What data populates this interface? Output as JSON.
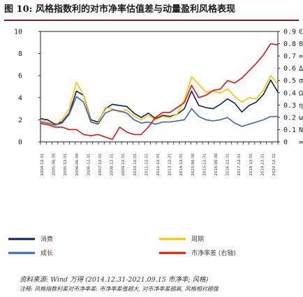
{
  "title": "图 10: 风格指数利的对市净率估值差与动量盈利风格表现",
  "source": "资料来源: Wind 万得 (2014.12.31-2021.09.15 市净率; 风格)",
  "note": "注释: 风格指数利差对市净率差: 市净率差值越大, 对市净率差越高, 风格相对越强",
  "colors": {
    "navy": "#0b1f5c",
    "blue": "#3b63b6",
    "gold": "#ffc000",
    "red": "#e01010"
  },
  "chart_data": {
    "type": "line",
    "x": [
      "2004-12-31",
      "2005-06-30",
      "2005-12-31",
      "2006-06-30",
      "2006-12-31",
      "2007-06-30",
      "2007-12-31",
      "2008-06-30",
      "2008-12-31",
      "2009-06-30",
      "2009-12-31",
      "2010-06-30",
      "2010-12-31",
      "2011-06-30",
      "2011-12-31",
      "2012-06-30",
      "2012-12-31",
      "2013-06-30",
      "2013-12-31",
      "2014-06-30",
      "2014-12-31",
      "2015-06-30",
      "2015-12-31",
      "2016-06-30",
      "2016-12-31",
      "2017-06-30",
      "2017-12-31",
      "2018-06-30",
      "2018-12-31",
      "2019-06-30",
      "2019-12-31",
      "2020-06-30",
      "2020-12-31",
      "2021-06-30"
    ],
    "xtick_labels": [
      "2004-12-31",
      "2005-06-30",
      "2005-12-31",
      "2006-06-30",
      "2006-12-31",
      "2007-12-31",
      "2008-12-31",
      "2009-12-31",
      "2010-12-31",
      "2011-12-31",
      "2012-12-31",
      "2013-12-31",
      "2014-12-31",
      "2015-06-30",
      "2015-12-31",
      "2016-06-30",
      "2016-12-31",
      "2017-12-31",
      "2018-12-31",
      "2019-12-31",
      "2020-12-31"
    ],
    "y_left": {
      "range": [
        0,
        10
      ],
      "ticks": [
        0,
        2,
        4,
        6,
        8,
        10
      ]
    },
    "y_right": {
      "range": [
        0,
        0.9
      ],
      "ticks": [
        0,
        0.1,
        0.2,
        0.3,
        0.4,
        0.5,
        0.6,
        0.7,
        0.8,
        0.9
      ]
    },
    "right_axis_glyphs": [
      "=",
      "N",
      "ω",
      "ƞ",
      "Ω",
      "σ",
      "∆",
      "∞",
      "Θ",
      "Ͼ"
    ],
    "series": [
      {
        "name": "消费",
        "axis": "left",
        "color": "#0b1f5c",
        "values": [
          2.1,
          2.0,
          1.6,
          1.8,
          2.6,
          4.6,
          4.2,
          2.0,
          1.8,
          3.0,
          3.4,
          3.3,
          3.2,
          2.6,
          2.2,
          2.6,
          2.1,
          2.4,
          2.3,
          2.5,
          3.0,
          4.6,
          3.3,
          3.1,
          3.0,
          3.4,
          3.9,
          3.5,
          2.7,
          3.3,
          3.6,
          4.3,
          5.6,
          4.5
        ]
      },
      {
        "name": "周期",
        "axis": "left",
        "color": "#ffc000",
        "values": [
          1.9,
          1.9,
          1.5,
          2.0,
          3.0,
          5.4,
          4.2,
          1.8,
          1.7,
          3.1,
          3.0,
          2.7,
          2.9,
          2.3,
          2.0,
          2.4,
          2.0,
          2.3,
          2.2,
          2.5,
          3.8,
          5.9,
          5.2,
          4.5,
          4.6,
          4.4,
          4.8,
          4.1,
          3.6,
          4.0,
          3.9,
          4.7,
          6.0,
          5.2
        ]
      },
      {
        "name": "成长",
        "axis": "left",
        "color": "#3b63b6",
        "values": [
          1.8,
          1.7,
          1.5,
          1.7,
          2.5,
          4.1,
          3.6,
          1.8,
          1.6,
          2.6,
          2.9,
          2.8,
          2.6,
          2.0,
          1.7,
          1.8,
          1.6,
          1.8,
          1.8,
          1.9,
          2.0,
          3.0,
          2.3,
          2.0,
          1.9,
          2.0,
          2.2,
          1.7,
          1.4,
          1.6,
          1.8,
          2.0,
          2.3,
          2.3
        ]
      },
      {
        "name": "市净率差 (右轴)",
        "axis": "right",
        "color": "#e01010",
        "values": [
          0.15,
          0.14,
          0.12,
          0.12,
          0.1,
          0.1,
          0.06,
          0.05,
          0.06,
          0.04,
          0.02,
          0.12,
          0.08,
          0.06,
          0.06,
          0.12,
          0.2,
          0.24,
          0.24,
          0.28,
          0.32,
          0.46,
          0.36,
          0.38,
          0.42,
          0.43,
          0.5,
          0.48,
          0.52,
          0.58,
          0.64,
          0.71,
          0.8,
          0.79
        ]
      }
    ],
    "legend": {
      "placement": "bottom",
      "items": [
        {
          "label": "消费",
          "color": "#0b1f5c",
          "style": "line"
        },
        {
          "label": "成长",
          "color": "#3b63b6",
          "style": "line"
        },
        {
          "label": "周期",
          "color": "#ffc000",
          "style": "line"
        },
        {
          "label": "市净率差 (右轴)",
          "color": "#e01010",
          "style": "line"
        }
      ]
    },
    "grid": false
  }
}
